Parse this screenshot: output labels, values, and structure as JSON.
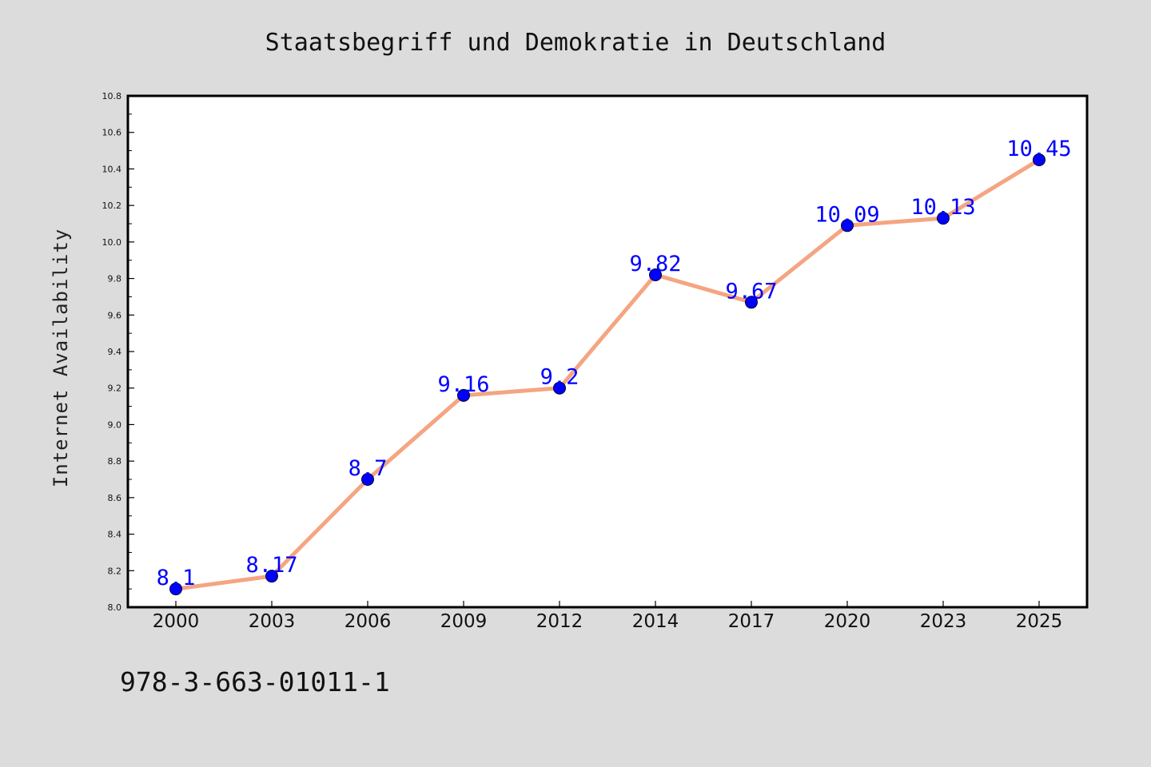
{
  "chart_data": {
    "type": "line",
    "title": "Staatsbegriff und Demokratie in Deutschland",
    "xlabel": "",
    "ylabel": "Internet Availability",
    "categories": [
      "2000",
      "2003",
      "2006",
      "2009",
      "2012",
      "2014",
      "2017",
      "2020",
      "2023",
      "2025"
    ],
    "series": [
      {
        "values": [
          8.1,
          8.17,
          8.7,
          9.16,
          9.2,
          9.82,
          9.67,
          10.09,
          10.13,
          10.45
        ],
        "labels": [
          "8.1",
          "8.17",
          "8.7",
          "9.16",
          "9.2",
          "9.82",
          "9.67",
          "10.09",
          "10.13",
          "10.45"
        ],
        "line_color": "#f4a582",
        "marker_color": "#0000ff",
        "label_color": "#0000ff"
      }
    ],
    "ylim": [
      8.0,
      10.8
    ],
    "yticks": [
      "8.0",
      "8.2",
      "8.4",
      "8.6",
      "8.8",
      "9.0",
      "9.2",
      "9.4",
      "9.6",
      "9.8",
      "10.0",
      "10.2",
      "10.4",
      "10.6",
      "10.8"
    ],
    "grid": false,
    "legend": "none"
  },
  "footnote": "978-3-663-01011-1",
  "colors": {
    "background": "#dcdcdc",
    "plot_area": "#ffffff",
    "axes": "#000000"
  }
}
